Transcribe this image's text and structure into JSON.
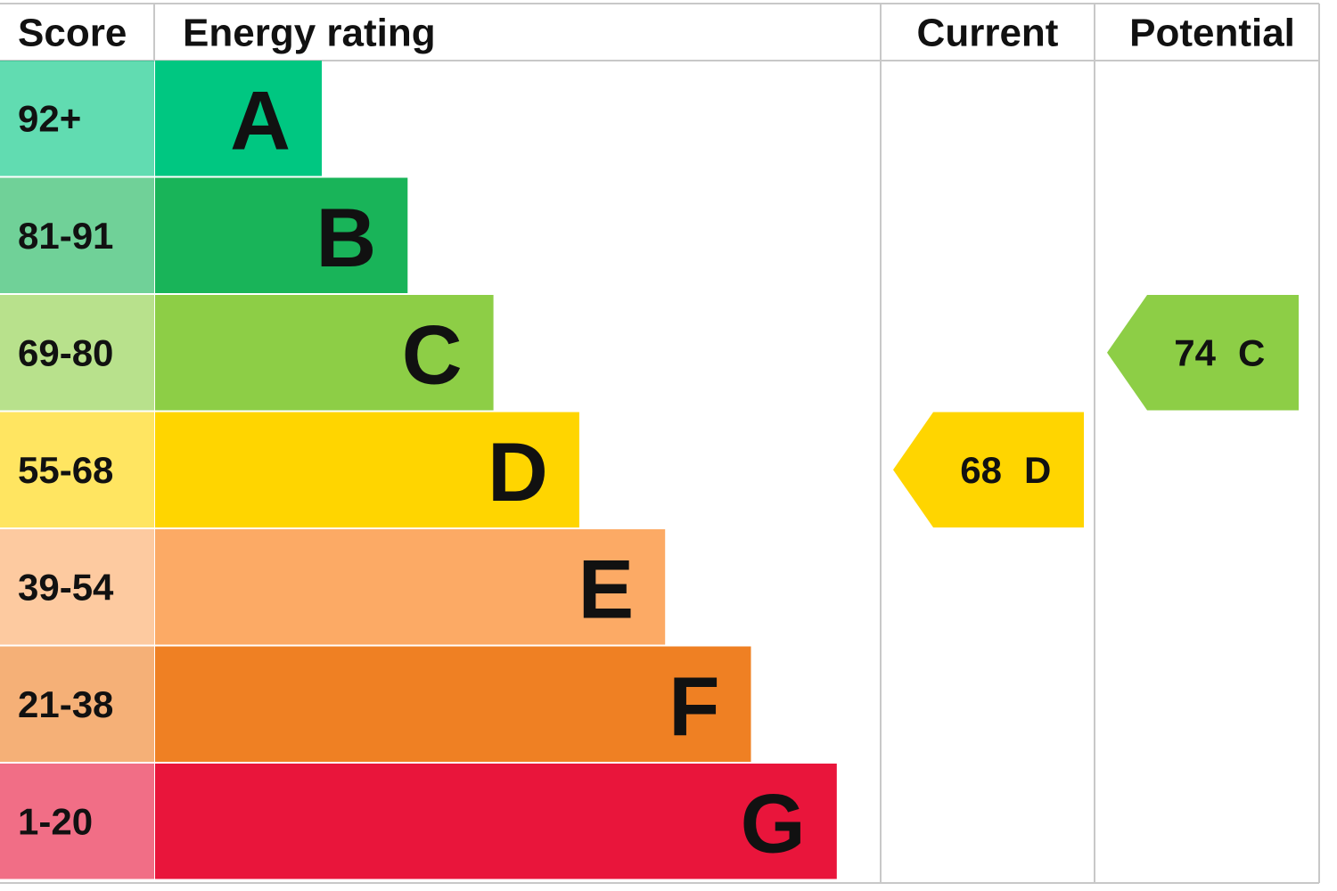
{
  "header": {
    "score": "Score",
    "rating": "Energy rating",
    "current": "Current",
    "potential": "Potential"
  },
  "bands": [
    {
      "score": "92+",
      "letter": "A",
      "color": "#00c781"
    },
    {
      "score": "81-91",
      "letter": "B",
      "color": "#19b459"
    },
    {
      "score": "69-80",
      "letter": "C",
      "color": "#8dce46"
    },
    {
      "score": "55-68",
      "letter": "D",
      "color": "#ffd500"
    },
    {
      "score": "39-54",
      "letter": "E",
      "color": "#fcaa65"
    },
    {
      "score": "21-38",
      "letter": "F",
      "color": "#ef8023"
    },
    {
      "score": "1-20",
      "letter": "G",
      "color": "#e9153b"
    }
  ],
  "current": {
    "value": 68,
    "letter": "D"
  },
  "potential": {
    "value": 74,
    "letter": "C"
  }
}
